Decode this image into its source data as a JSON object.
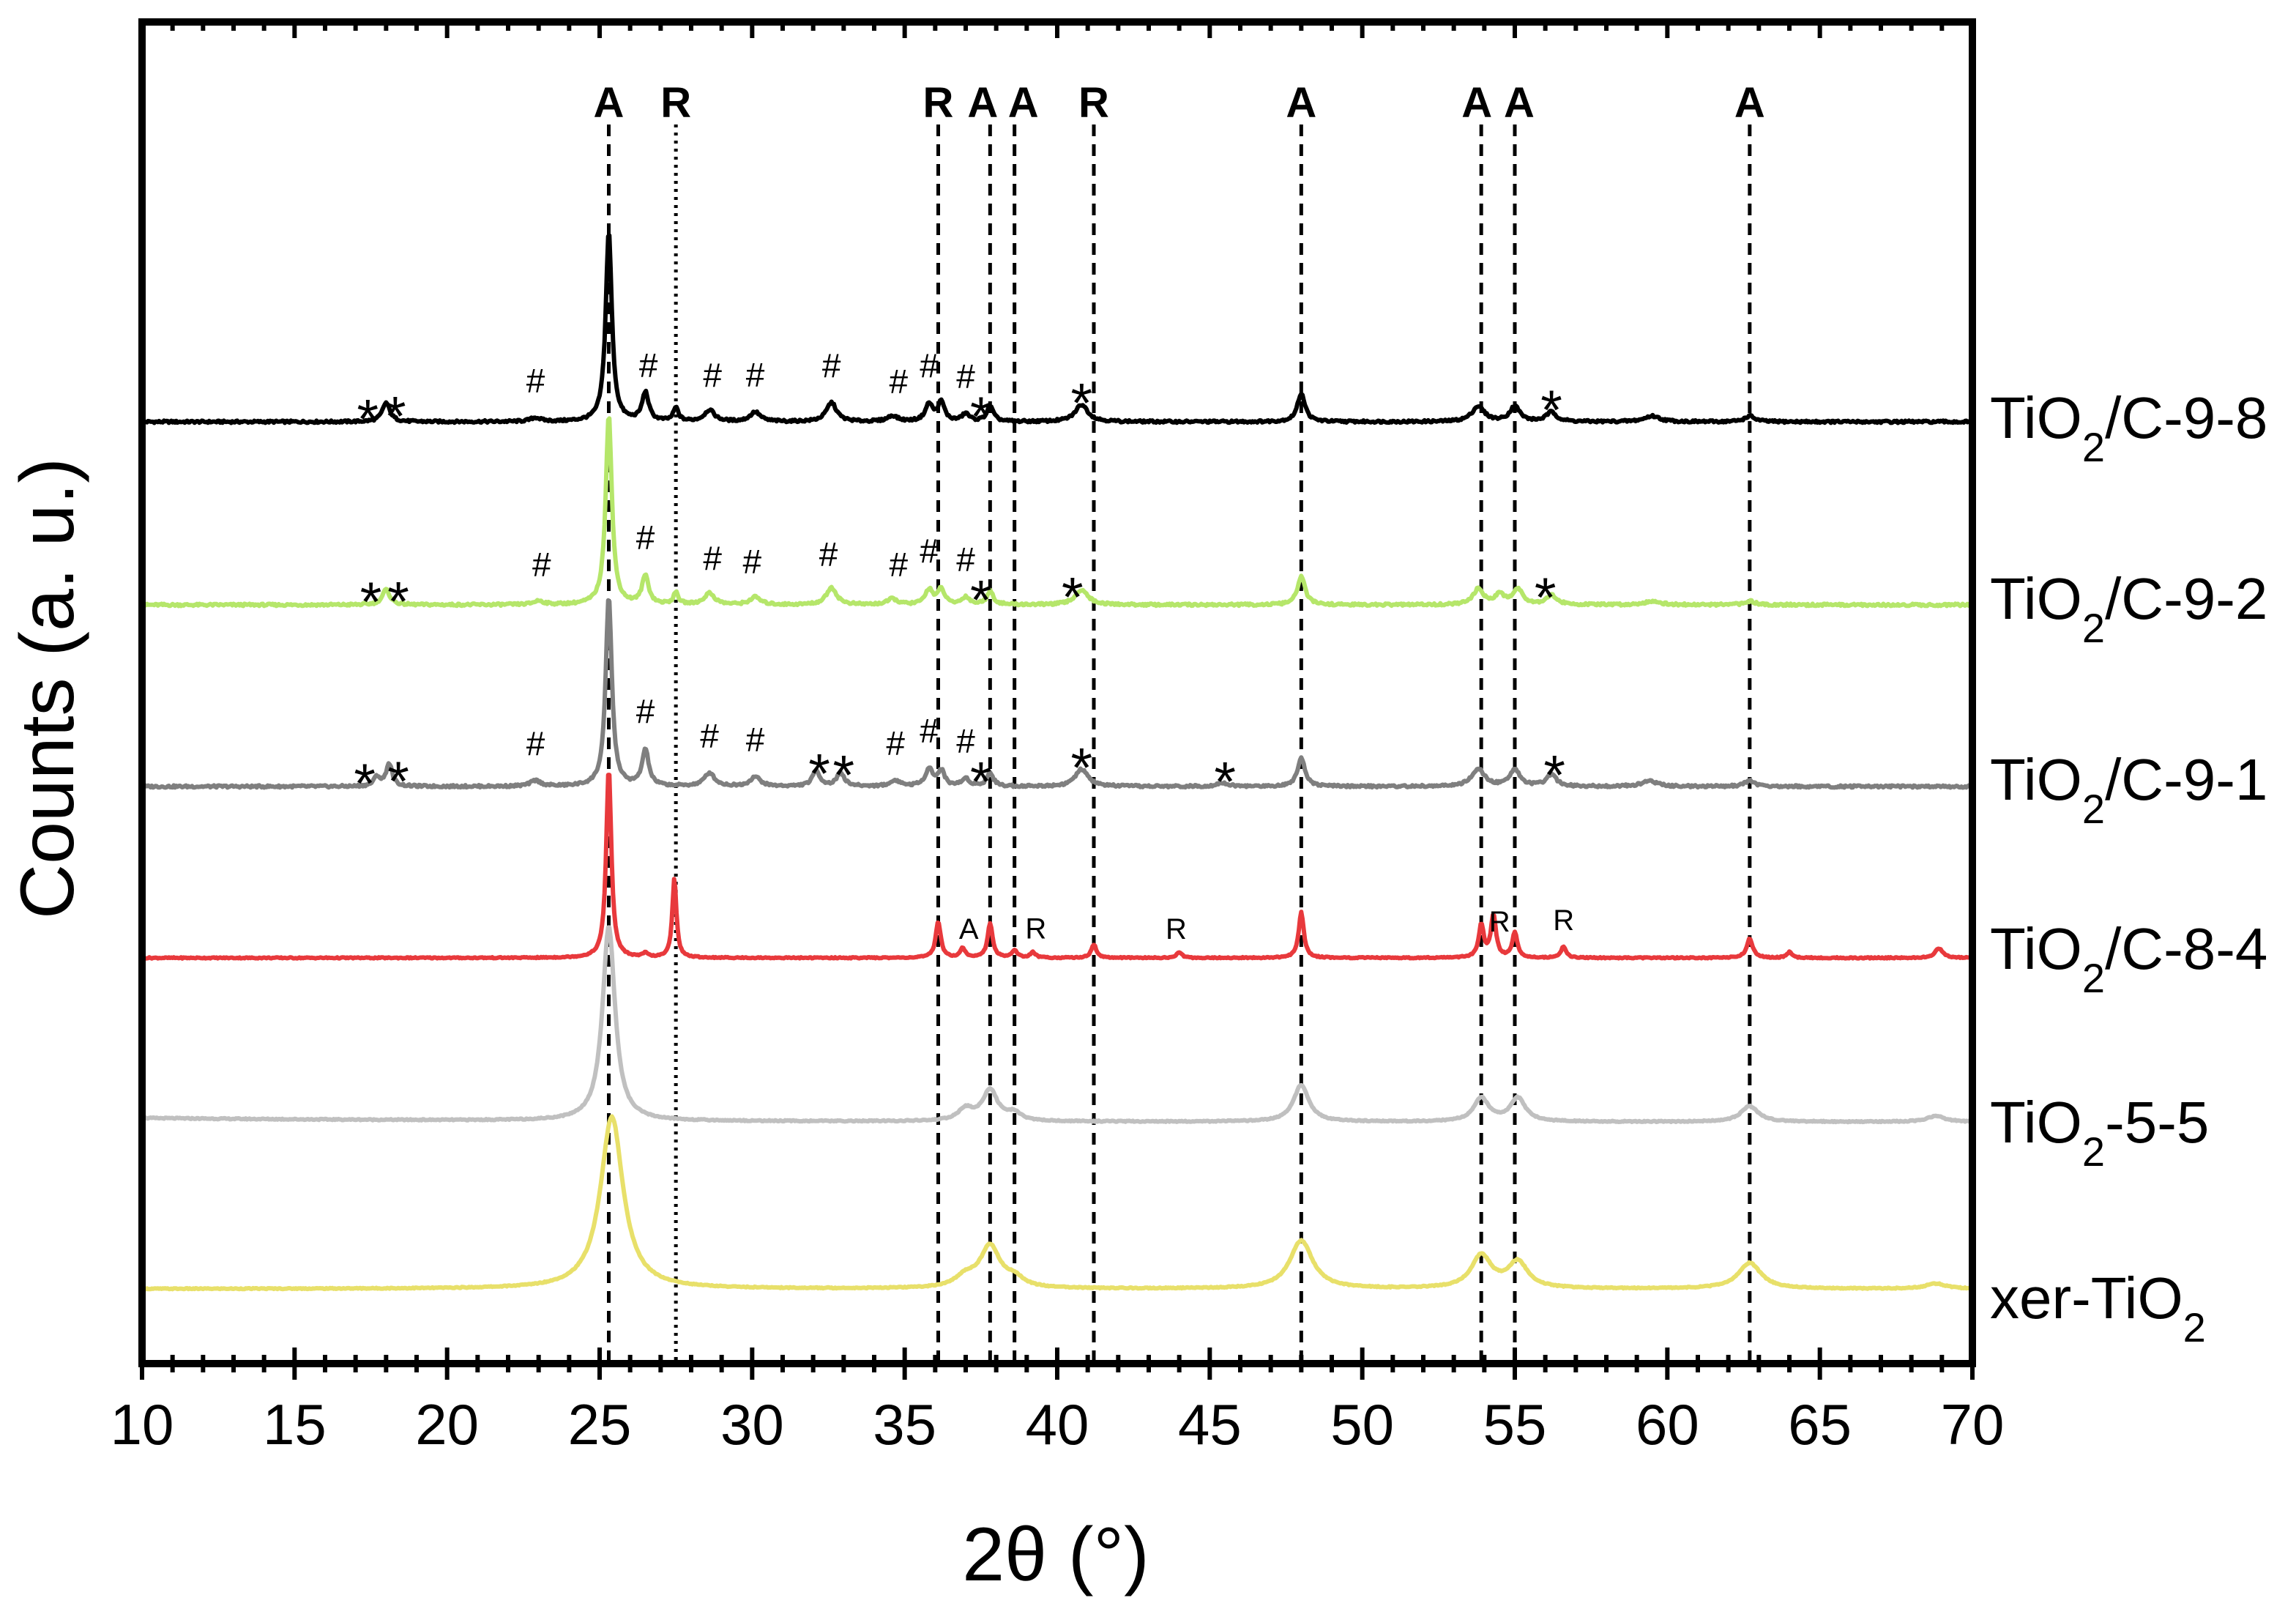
{
  "chart_data": {
    "type": "line",
    "title": "",
    "xlabel": "2θ (°)",
    "ylabel": "Counts (a. u.)",
    "xlim": [
      10,
      70
    ],
    "x_ticks": [
      10,
      15,
      20,
      25,
      30,
      35,
      40,
      45,
      50,
      55,
      60,
      65,
      70
    ],
    "y_ticks": [],
    "grid": false,
    "legend": "series labelled at right end of each trace",
    "reference_lines": [
      {
        "phase": "A",
        "two_theta": 25.3,
        "style": "dashed"
      },
      {
        "phase": "R",
        "two_theta": 27.5,
        "style": "dotted"
      },
      {
        "phase": "R",
        "two_theta": 36.1,
        "style": "dashed"
      },
      {
        "phase": "A",
        "two_theta": 37.8,
        "style": "dashed"
      },
      {
        "phase": "A",
        "two_theta": 38.6,
        "style": "dashed"
      },
      {
        "phase": "R",
        "two_theta": 41.2,
        "style": "dashed"
      },
      {
        "phase": "A",
        "two_theta": 48.0,
        "style": "dashed"
      },
      {
        "phase": "A",
        "two_theta": 53.9,
        "style": "dashed"
      },
      {
        "phase": "A",
        "two_theta": 55.0,
        "style": "dashed"
      },
      {
        "phase": "A",
        "two_theta": 62.7,
        "style": "dashed"
      }
    ],
    "series": [
      {
        "name": "TiO2/C-9-8",
        "label_main": "TiO",
        "label_sub": "2",
        "label_rest": "/C-9-8",
        "color": "#000000",
        "baseline": 0,
        "peaks": [
          {
            "x": 18.0,
            "h": 0.1,
            "w": 0.15
          },
          {
            "x": 22.9,
            "h": 0.02,
            "w": 0.2
          },
          {
            "x": 25.3,
            "h": 1.0,
            "w": 0.12
          },
          {
            "x": 26.5,
            "h": 0.15,
            "w": 0.13
          },
          {
            "x": 27.5,
            "h": 0.07,
            "w": 0.1
          },
          {
            "x": 28.6,
            "h": 0.06,
            "w": 0.2
          },
          {
            "x": 30.1,
            "h": 0.05,
            "w": 0.2
          },
          {
            "x": 32.6,
            "h": 0.1,
            "w": 0.2
          },
          {
            "x": 34.6,
            "h": 0.03,
            "w": 0.2
          },
          {
            "x": 35.8,
            "h": 0.09,
            "w": 0.15
          },
          {
            "x": 36.2,
            "h": 0.1,
            "w": 0.13
          },
          {
            "x": 37.0,
            "h": 0.04,
            "w": 0.15
          },
          {
            "x": 37.8,
            "h": 0.08,
            "w": 0.13
          },
          {
            "x": 40.8,
            "h": 0.09,
            "w": 0.25
          },
          {
            "x": 48.0,
            "h": 0.15,
            "w": 0.15
          },
          {
            "x": 53.8,
            "h": 0.08,
            "w": 0.25
          },
          {
            "x": 55.0,
            "h": 0.08,
            "w": 0.2
          },
          {
            "x": 56.2,
            "h": 0.05,
            "w": 0.2
          },
          {
            "x": 59.5,
            "h": 0.03,
            "w": 0.3
          },
          {
            "x": 62.7,
            "h": 0.03,
            "w": 0.2
          }
        ],
        "annotations": [
          {
            "text": "*",
            "x": 17.4,
            "size": "big"
          },
          {
            "text": "*",
            "x": 18.3,
            "size": "big"
          },
          {
            "text": "#",
            "x": 22.9,
            "size": "small"
          },
          {
            "text": "#",
            "x": 26.6,
            "size": "small"
          },
          {
            "text": "#",
            "x": 28.7,
            "size": "small"
          },
          {
            "text": "#",
            "x": 30.1,
            "size": "small"
          },
          {
            "text": "#",
            "x": 32.6,
            "size": "small"
          },
          {
            "text": "#",
            "x": 34.8,
            "size": "small"
          },
          {
            "text": "#",
            "x": 35.8,
            "size": "small"
          },
          {
            "text": "#",
            "x": 37.0,
            "size": "small"
          },
          {
            "text": "*",
            "x": 37.5,
            "size": "big"
          },
          {
            "text": "*",
            "x": 40.8,
            "size": "big"
          },
          {
            "text": "*",
            "x": 56.2,
            "size": "big"
          }
        ]
      },
      {
        "name": "TiO2/C-9-2",
        "label_main": "TiO",
        "label_sub": "2",
        "label_rest": "/C-9-2",
        "color": "#b5e66a",
        "baseline": 0,
        "peaks": [
          {
            "x": 18.0,
            "h": 0.08,
            "w": 0.15
          },
          {
            "x": 23.0,
            "h": 0.02,
            "w": 0.2
          },
          {
            "x": 25.3,
            "h": 1.0,
            "w": 0.12
          },
          {
            "x": 26.5,
            "h": 0.15,
            "w": 0.13
          },
          {
            "x": 27.5,
            "h": 0.06,
            "w": 0.1
          },
          {
            "x": 28.6,
            "h": 0.06,
            "w": 0.2
          },
          {
            "x": 30.1,
            "h": 0.04,
            "w": 0.2
          },
          {
            "x": 32.6,
            "h": 0.09,
            "w": 0.2
          },
          {
            "x": 34.6,
            "h": 0.03,
            "w": 0.2
          },
          {
            "x": 35.8,
            "h": 0.08,
            "w": 0.15
          },
          {
            "x": 36.2,
            "h": 0.08,
            "w": 0.13
          },
          {
            "x": 37.0,
            "h": 0.04,
            "w": 0.15
          },
          {
            "x": 37.8,
            "h": 0.07,
            "w": 0.13
          },
          {
            "x": 40.8,
            "h": 0.08,
            "w": 0.25
          },
          {
            "x": 48.0,
            "h": 0.15,
            "w": 0.15
          },
          {
            "x": 53.8,
            "h": 0.08,
            "w": 0.2
          },
          {
            "x": 54.5,
            "h": 0.05,
            "w": 0.2
          },
          {
            "x": 55.1,
            "h": 0.08,
            "w": 0.2
          },
          {
            "x": 56.2,
            "h": 0.05,
            "w": 0.2
          },
          {
            "x": 59.5,
            "h": 0.02,
            "w": 0.3
          },
          {
            "x": 62.7,
            "h": 0.02,
            "w": 0.2
          }
        ],
        "annotations": [
          {
            "text": "*",
            "x": 17.5,
            "size": "big"
          },
          {
            "text": "*",
            "x": 18.4,
            "size": "big"
          },
          {
            "text": "#",
            "x": 23.1,
            "size": "small"
          },
          {
            "text": "#",
            "x": 26.5,
            "size": "small"
          },
          {
            "text": "#",
            "x": 28.7,
            "size": "small"
          },
          {
            "text": "#",
            "x": 30.0,
            "size": "small"
          },
          {
            "text": "#",
            "x": 32.5,
            "size": "small"
          },
          {
            "text": "#",
            "x": 34.8,
            "size": "small"
          },
          {
            "text": "#",
            "x": 35.8,
            "size": "small"
          },
          {
            "text": "#",
            "x": 37.0,
            "size": "small"
          },
          {
            "text": "*",
            "x": 37.5,
            "size": "big"
          },
          {
            "text": "*",
            "x": 40.5,
            "size": "big"
          },
          {
            "text": "*",
            "x": 56.0,
            "size": "big"
          }
        ]
      },
      {
        "name": "TiO2/C-9-1",
        "label_main": "TiO",
        "label_sub": "2",
        "label_rest": "/C-9-1",
        "color": "#7f7f7f",
        "baseline": 0,
        "peaks": [
          {
            "x": 17.7,
            "h": 0.05,
            "w": 0.12
          },
          {
            "x": 18.1,
            "h": 0.12,
            "w": 0.12
          },
          {
            "x": 22.9,
            "h": 0.03,
            "w": 0.2
          },
          {
            "x": 25.3,
            "h": 1.0,
            "w": 0.12
          },
          {
            "x": 26.5,
            "h": 0.19,
            "w": 0.13
          },
          {
            "x": 28.6,
            "h": 0.07,
            "w": 0.2
          },
          {
            "x": 30.1,
            "h": 0.05,
            "w": 0.2
          },
          {
            "x": 32.1,
            "h": 0.08,
            "w": 0.15
          },
          {
            "x": 32.9,
            "h": 0.07,
            "w": 0.15
          },
          {
            "x": 34.7,
            "h": 0.03,
            "w": 0.2
          },
          {
            "x": 35.8,
            "h": 0.09,
            "w": 0.15
          },
          {
            "x": 36.2,
            "h": 0.08,
            "w": 0.13
          },
          {
            "x": 37.0,
            "h": 0.04,
            "w": 0.15
          },
          {
            "x": 37.8,
            "h": 0.07,
            "w": 0.13
          },
          {
            "x": 40.8,
            "h": 0.09,
            "w": 0.25
          },
          {
            "x": 45.4,
            "h": 0.02,
            "w": 0.2
          },
          {
            "x": 48.0,
            "h": 0.15,
            "w": 0.15
          },
          {
            "x": 53.8,
            "h": 0.09,
            "w": 0.25
          },
          {
            "x": 55.0,
            "h": 0.09,
            "w": 0.2
          },
          {
            "x": 56.2,
            "h": 0.06,
            "w": 0.2
          },
          {
            "x": 59.4,
            "h": 0.03,
            "w": 0.3
          },
          {
            "x": 62.7,
            "h": 0.03,
            "w": 0.2
          }
        ],
        "annotations": [
          {
            "text": "*",
            "x": 17.3,
            "size": "big"
          },
          {
            "text": "*",
            "x": 18.4,
            "size": "big"
          },
          {
            "text": "#",
            "x": 22.9,
            "size": "small"
          },
          {
            "text": "#",
            "x": 26.5,
            "size": "small"
          },
          {
            "text": "#",
            "x": 28.6,
            "size": "small"
          },
          {
            "text": "#",
            "x": 30.1,
            "size": "small"
          },
          {
            "text": "*",
            "x": 32.2,
            "size": "big"
          },
          {
            "text": "*",
            "x": 33.0,
            "size": "big"
          },
          {
            "text": "#",
            "x": 34.7,
            "size": "small"
          },
          {
            "text": "#",
            "x": 35.8,
            "size": "small"
          },
          {
            "text": "#",
            "x": 37.0,
            "size": "small"
          },
          {
            "text": "*",
            "x": 37.5,
            "size": "big"
          },
          {
            "text": "*",
            "x": 40.8,
            "size": "big"
          },
          {
            "text": "*",
            "x": 45.5,
            "size": "big"
          },
          {
            "text": "*",
            "x": 56.3,
            "size": "big"
          }
        ]
      },
      {
        "name": "TiO2/C-8-4",
        "label_main": "TiO",
        "label_sub": "2",
        "label_rest": "/C-8-4",
        "color": "#e8393c",
        "baseline": 0,
        "peaks": [
          {
            "x": 25.3,
            "h": 1.0,
            "w": 0.1
          },
          {
            "x": 26.5,
            "h": 0.02,
            "w": 0.1
          },
          {
            "x": 27.45,
            "h": 0.42,
            "w": 0.08
          },
          {
            "x": 36.1,
            "h": 0.19,
            "w": 0.1
          },
          {
            "x": 36.9,
            "h": 0.05,
            "w": 0.1
          },
          {
            "x": 37.8,
            "h": 0.18,
            "w": 0.1
          },
          {
            "x": 38.6,
            "h": 0.04,
            "w": 0.1
          },
          {
            "x": 39.2,
            "h": 0.03,
            "w": 0.1
          },
          {
            "x": 41.2,
            "h": 0.07,
            "w": 0.1
          },
          {
            "x": 44.0,
            "h": 0.03,
            "w": 0.1
          },
          {
            "x": 48.0,
            "h": 0.24,
            "w": 0.1
          },
          {
            "x": 53.9,
            "h": 0.17,
            "w": 0.1
          },
          {
            "x": 54.3,
            "h": 0.22,
            "w": 0.1
          },
          {
            "x": 55.0,
            "h": 0.13,
            "w": 0.1
          },
          {
            "x": 56.6,
            "h": 0.06,
            "w": 0.1
          },
          {
            "x": 62.7,
            "h": 0.1,
            "w": 0.12
          },
          {
            "x": 64.0,
            "h": 0.03,
            "w": 0.1
          },
          {
            "x": 68.9,
            "h": 0.05,
            "w": 0.15
          }
        ],
        "annotations": [
          {
            "text": "A",
            "x": 37.1,
            "size": "letter"
          },
          {
            "text": "R",
            "x": 39.3,
            "size": "letter"
          },
          {
            "text": "R",
            "x": 43.9,
            "size": "letter"
          },
          {
            "text": "R",
            "x": 54.5,
            "size": "letter"
          },
          {
            "text": "R",
            "x": 56.6,
            "size": "letter"
          }
        ]
      },
      {
        "name": "TiO2-5-5",
        "label_main": "TiO",
        "label_sub": "2",
        "label_rest": "-5-5",
        "color": "#c0c0c0",
        "baseline": 0.02,
        "peaks": [
          {
            "x": 25.3,
            "h": 1.0,
            "w": 0.25
          },
          {
            "x": 37.0,
            "h": 0.06,
            "w": 0.3
          },
          {
            "x": 37.8,
            "h": 0.16,
            "w": 0.3
          },
          {
            "x": 38.6,
            "h": 0.04,
            "w": 0.25
          },
          {
            "x": 48.0,
            "h": 0.19,
            "w": 0.3
          },
          {
            "x": 53.9,
            "h": 0.12,
            "w": 0.3
          },
          {
            "x": 55.1,
            "h": 0.12,
            "w": 0.3
          },
          {
            "x": 62.7,
            "h": 0.08,
            "w": 0.35
          },
          {
            "x": 68.8,
            "h": 0.03,
            "w": 0.35
          }
        ],
        "annotations": []
      },
      {
        "name": "xer-TiO2",
        "label_main": "xer-TiO",
        "label_sub": "2",
        "label_rest": "",
        "color": "#e8e06a",
        "baseline": 0,
        "peaks": [
          {
            "x": 25.4,
            "h": 1.0,
            "w": 0.45
          },
          {
            "x": 37.0,
            "h": 0.06,
            "w": 0.4
          },
          {
            "x": 37.8,
            "h": 0.24,
            "w": 0.4
          },
          {
            "x": 38.6,
            "h": 0.05,
            "w": 0.35
          },
          {
            "x": 48.0,
            "h": 0.28,
            "w": 0.45
          },
          {
            "x": 53.9,
            "h": 0.19,
            "w": 0.4
          },
          {
            "x": 55.1,
            "h": 0.15,
            "w": 0.4
          },
          {
            "x": 62.7,
            "h": 0.15,
            "w": 0.45
          },
          {
            "x": 68.8,
            "h": 0.03,
            "w": 0.4
          }
        ],
        "annotations": []
      }
    ]
  }
}
